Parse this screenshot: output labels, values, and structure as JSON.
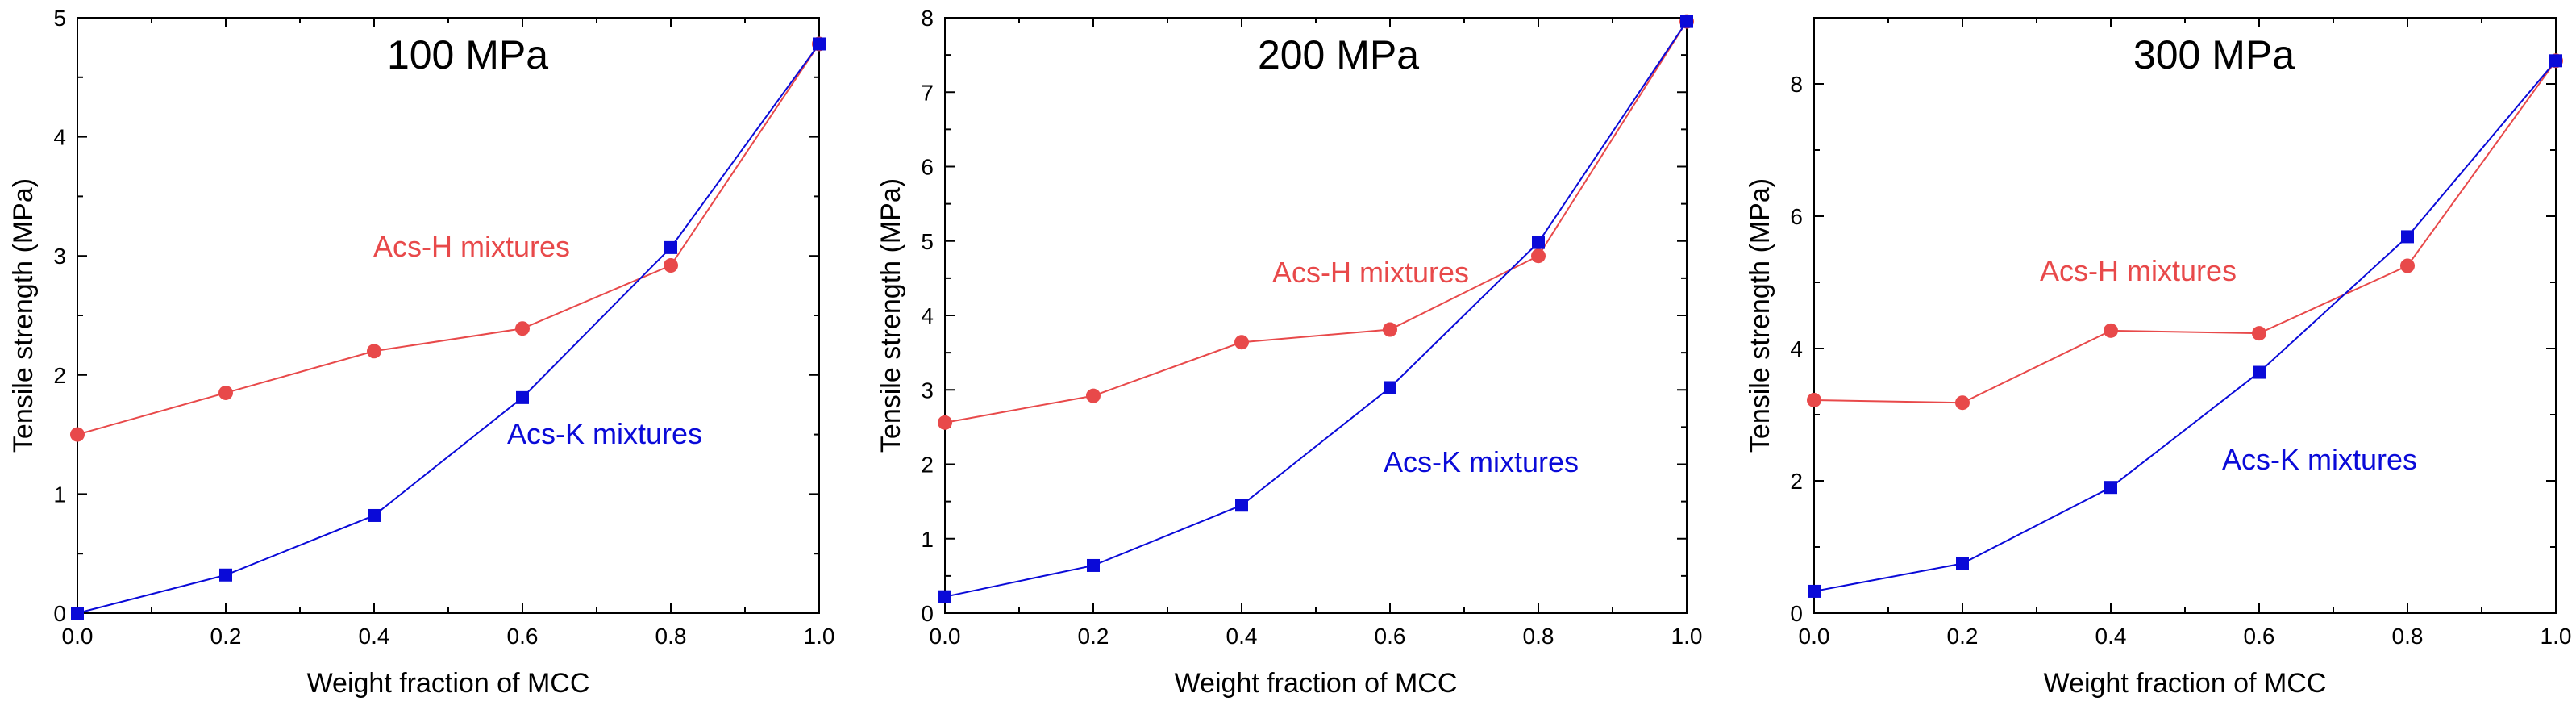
{
  "chart_data": [
    {
      "type": "line",
      "title": "100 MPa",
      "xlabel": "Weight fraction of MCC",
      "ylabel": "Tensile strength (MPa)",
      "xlim": [
        0,
        1.0
      ],
      "ylim": [
        0,
        5
      ],
      "xticks": [
        "0.0",
        "0.2",
        "0.4",
        "0.6",
        "0.8",
        "1.0"
      ],
      "yticks": [
        "0",
        "1",
        "2",
        "3",
        "4",
        "5"
      ],
      "grid": false,
      "series": [
        {
          "name": "Acs-H mixtures",
          "color": "#e8494a",
          "marker": "circle",
          "x": [
            0,
            0.2,
            0.4,
            0.6,
            0.8,
            1.0
          ],
          "y": [
            1.5,
            1.85,
            2.2,
            2.39,
            2.92,
            4.78
          ]
        },
        {
          "name": "Acs-K mixtures",
          "color": "#0a0ad8",
          "marker": "square",
          "x": [
            0,
            0.2,
            0.4,
            0.6,
            0.8,
            1.0
          ],
          "y": [
            0.0,
            0.32,
            0.82,
            1.81,
            3.07,
            4.78
          ]
        }
      ]
    },
    {
      "type": "line",
      "title": "200 MPa",
      "xlabel": "Weight fraction of MCC",
      "ylabel": "Tensile strength (MPa)",
      "xlim": [
        0,
        1.0
      ],
      "ylim": [
        0,
        8
      ],
      "xticks": [
        "0.0",
        "0.2",
        "0.4",
        "0.6",
        "0.8",
        "1.0"
      ],
      "yticks": [
        "0",
        "1",
        "2",
        "3",
        "4",
        "5",
        "6",
        "7",
        "8"
      ],
      "grid": false,
      "series": [
        {
          "name": "Acs-H mixtures",
          "color": "#e8494a",
          "marker": "circle",
          "x": [
            0,
            0.2,
            0.4,
            0.6,
            0.8,
            1.0
          ],
          "y": [
            2.56,
            2.92,
            3.64,
            3.81,
            4.8,
            7.95
          ]
        },
        {
          "name": "Acs-K mixtures",
          "color": "#0a0ad8",
          "marker": "square",
          "x": [
            0,
            0.2,
            0.4,
            0.6,
            0.8,
            1.0
          ],
          "y": [
            0.22,
            0.64,
            1.45,
            3.03,
            4.98,
            7.95
          ]
        }
      ]
    },
    {
      "type": "line",
      "title": "300 MPa",
      "xlabel": "Weight fraction of MCC",
      "ylabel": "Tensile strength (MPa)",
      "xlim": [
        0,
        1.0
      ],
      "ylim": [
        0,
        9
      ],
      "xticks": [
        "0.0",
        "0.2",
        "0.4",
        "0.6",
        "0.8",
        "1.0"
      ],
      "yticks": [
        "0",
        "2",
        "4",
        "6",
        "8"
      ],
      "ytick_values": [
        0,
        2,
        4,
        6,
        8
      ],
      "grid": false,
      "series": [
        {
          "name": "Acs-H mixtures",
          "color": "#e8494a",
          "marker": "circle",
          "x": [
            0,
            0.2,
            0.4,
            0.6,
            0.8,
            1.0
          ],
          "y": [
            3.22,
            3.18,
            4.27,
            4.23,
            5.25,
            8.35
          ]
        },
        {
          "name": "Acs-K mixtures",
          "color": "#0a0ad8",
          "marker": "square",
          "x": [
            0,
            0.2,
            0.4,
            0.6,
            0.8,
            1.0
          ],
          "y": [
            0.33,
            0.75,
            1.9,
            3.64,
            5.69,
            8.35
          ]
        }
      ]
    }
  ]
}
